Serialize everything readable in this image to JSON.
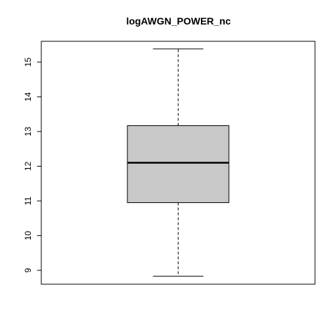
{
  "chart_data": {
    "type": "boxplot",
    "title": "logAWGN_POWER_nc",
    "xlabel": "",
    "ylabel": "",
    "ylim": [
      8.6,
      15.6
    ],
    "yticks": [
      9,
      10,
      11,
      12,
      13,
      14,
      15
    ],
    "ytick_labels": [
      "9",
      "10",
      "11",
      "12",
      "13",
      "14",
      "15"
    ],
    "box": {
      "min": 8.83,
      "q1": 10.95,
      "median": 12.1,
      "q3": 13.17,
      "max": 15.38
    },
    "colors": {
      "box_fill": "#c8c8c8",
      "stroke": "#000000",
      "background": "#ffffff"
    },
    "grid": false,
    "legend": "none"
  }
}
